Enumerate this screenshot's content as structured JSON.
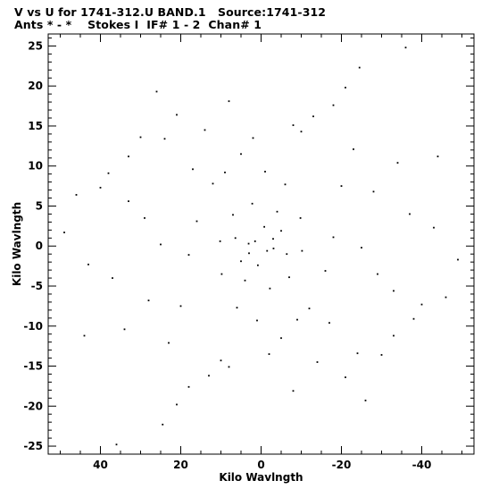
{
  "chart_data": {
    "type": "scatter",
    "title": "V vs U for 1741-312.U BAND.1   Source:1741-312",
    "subtitle": "Ants * - *    Stokes I  IF# 1 - 2  Chan# 1",
    "xlabel": "Kilo Wavlngth",
    "ylabel": "Kilo Wavlngth",
    "xlim": [
      53,
      -53
    ],
    "ylim": [
      -26,
      26.5
    ],
    "x_direction": "reversed",
    "x_ticks": [
      40,
      20,
      0,
      -20,
      -40
    ],
    "y_ticks": [
      -25,
      -20,
      -15,
      -10,
      -5,
      0,
      5,
      10,
      15,
      20,
      25
    ],
    "grid": false,
    "legend": "none",
    "marker_color": "#000000",
    "description_of_points": "u-v coverage tracks; approx. 2500 points, symmetric about origin",
    "series": [
      {
        "points": [
          [
            36,
            -24.8
          ],
          [
            -36,
            24.8
          ],
          [
            24.5,
            -22.3
          ],
          [
            -24.5,
            22.3
          ],
          [
            21,
            -19.8
          ],
          [
            -21,
            19.8
          ],
          [
            18,
            -17.6
          ],
          [
            -18,
            17.6
          ],
          [
            13,
            -16.2
          ],
          [
            -13,
            16.2
          ],
          [
            8,
            -15.1
          ],
          [
            -8,
            15.1
          ],
          [
            -8,
            -18.1
          ],
          [
            8,
            18.1
          ],
          [
            -14,
            -14.5
          ],
          [
            14,
            14.5
          ],
          [
            -21,
            -16.4
          ],
          [
            21,
            16.4
          ],
          [
            -24,
            -13.4
          ],
          [
            24,
            13.4
          ],
          [
            -26,
            -19.3
          ],
          [
            26,
            19.3
          ],
          [
            -33,
            -11.2
          ],
          [
            33,
            11.2
          ],
          [
            -40,
            -7.3
          ],
          [
            40,
            7.3
          ],
          [
            -46,
            -6.4
          ],
          [
            46,
            6.4
          ],
          [
            -49,
            -1.7
          ],
          [
            49,
            1.7
          ],
          [
            -44,
            11.2
          ],
          [
            44,
            -11.2
          ],
          [
            -34,
            10.4
          ],
          [
            34,
            -10.4
          ],
          [
            -23,
            12.1
          ],
          [
            23,
            -12.1
          ],
          [
            -10,
            14.3
          ],
          [
            10,
            -14.3
          ],
          [
            2,
            13.5
          ],
          [
            -2,
            -13.5
          ],
          [
            -5,
            1.9
          ],
          [
            5,
            -1.9
          ],
          [
            -3,
            0.9
          ],
          [
            3,
            -0.9
          ],
          [
            -1.5,
            -0.6
          ],
          [
            1.5,
            0.6
          ],
          [
            0.8,
            -2.4
          ],
          [
            -0.8,
            2.4
          ],
          [
            3.1,
            0.3
          ],
          [
            -3.1,
            -0.3
          ],
          [
            6.4,
            1.0
          ],
          [
            -6.4,
            -1.0
          ],
          [
            10.2,
            0.6
          ],
          [
            -10.2,
            -0.6
          ],
          [
            -9.8,
            3.5
          ],
          [
            9.8,
            -3.5
          ],
          [
            -16,
            -3.1
          ],
          [
            16,
            3.1
          ],
          [
            -12,
            -7.8
          ],
          [
            12,
            7.8
          ],
          [
            -29,
            -3.5
          ],
          [
            29,
            3.5
          ],
          [
            -37,
            4.0
          ],
          [
            37,
            -4.0
          ],
          [
            -43,
            2.3
          ],
          [
            43,
            -2.3
          ],
          [
            -28,
            6.8
          ],
          [
            28,
            -6.8
          ],
          [
            -20,
            7.5
          ],
          [
            20,
            -7.5
          ],
          [
            -6,
            7.7
          ],
          [
            6,
            -7.7
          ],
          [
            -1,
            9.3
          ],
          [
            1,
            -9.3
          ],
          [
            -4,
            4.3
          ],
          [
            4,
            -4.3
          ],
          [
            -7,
            -3.9
          ],
          [
            7,
            3.9
          ],
          [
            -2.2,
            -5.3
          ],
          [
            2.2,
            5.3
          ],
          [
            -18,
            1.1
          ],
          [
            18,
            -1.1
          ],
          [
            -25,
            -0.2
          ],
          [
            25,
            0.2
          ],
          [
            -33,
            -5.6
          ],
          [
            33,
            5.6
          ],
          [
            -38,
            -9.1
          ],
          [
            38,
            9.1
          ],
          [
            -30,
            -13.6
          ],
          [
            30,
            13.6
          ],
          [
            -17,
            -9.6
          ],
          [
            17,
            9.6
          ],
          [
            -9,
            -9.2
          ],
          [
            9,
            9.2
          ],
          [
            -5,
            -11.5
          ],
          [
            5,
            11.5
          ]
        ]
      }
    ]
  }
}
